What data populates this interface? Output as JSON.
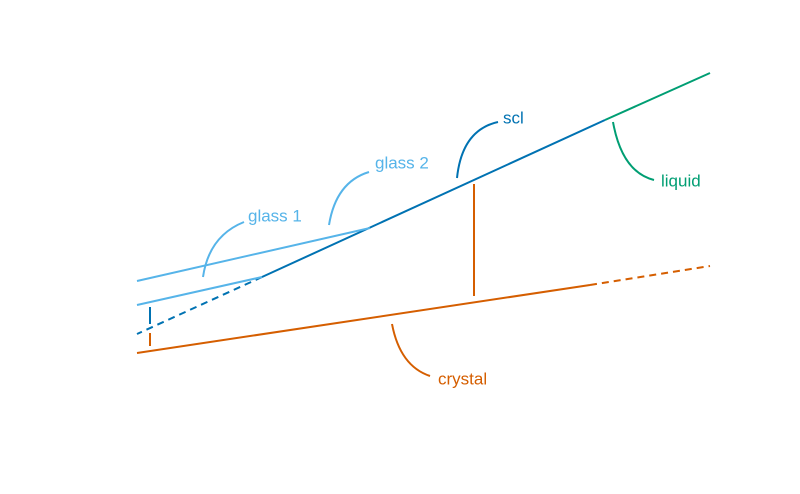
{
  "labels": {
    "scl": "scl",
    "glass_2": "glass 2",
    "glass_1": "glass 1",
    "liquid": "liquid",
    "crystal": "crystal"
  }
}
